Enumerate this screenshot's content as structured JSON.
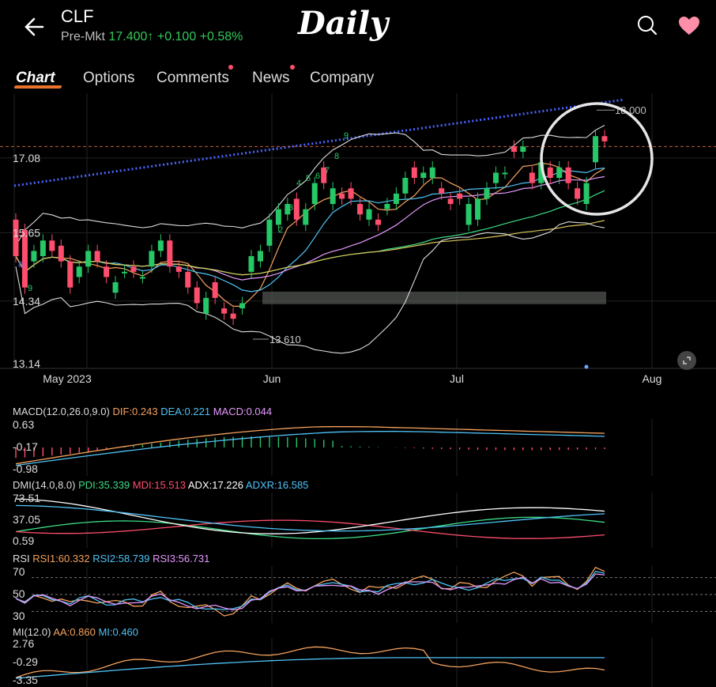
{
  "header": {
    "symbol": "CLF",
    "premkt_label": "Pre-Mkt",
    "premkt_price": "17.400",
    "premkt_arrow": "↑",
    "premkt_change": "+0.100",
    "premkt_change_pct": "+0.58%",
    "overlay_title": "Daily"
  },
  "tabs": [
    {
      "label": "Chart",
      "active": true
    },
    {
      "label": "Options",
      "active": false
    },
    {
      "label": "Comments",
      "active": false,
      "dot": true
    },
    {
      "label": "News",
      "active": false,
      "dot": true
    },
    {
      "label": "Company",
      "active": false
    }
  ],
  "colors": {
    "up": "#26c766",
    "down": "#ff4d6d",
    "dif": "#f5a25d",
    "dea": "#4fc3f7",
    "pdi": "#3ddc84",
    "mdi": "#ff4d6d",
    "adx": "#ffffff",
    "adxr": "#4fc3f7",
    "rsi1": "#f5a25d",
    "rsi2": "#4fc3f7",
    "rsi3": "#e699ff",
    "aa": "#f5a25d",
    "mi": "#4fc3f7"
  },
  "chart_data": {
    "type": "candlestick",
    "y_axis_labels": [
      "17.08",
      "15.65",
      "14.34",
      "13.14"
    ],
    "ylim": [
      13.14,
      18.2
    ],
    "x_axis_labels": [
      "May 2023",
      "Jun",
      "Jul",
      "Aug"
    ],
    "annotations": {
      "high_label": "18.000",
      "low_label": "13.610",
      "td_counts": [
        "8",
        "9",
        "2",
        "3",
        "4",
        "5",
        "6",
        "7",
        "8",
        "9"
      ]
    },
    "candles": [
      {
        "o": 15.9,
        "c": 15.2
      },
      {
        "o": 15.7,
        "c": 14.6
      },
      {
        "o": 15.1,
        "c": 15.3
      },
      {
        "o": 15.2,
        "c": 15.5
      },
      {
        "o": 15.5,
        "c": 15.3
      },
      {
        "o": 15.4,
        "c": 15.1
      },
      {
        "o": 15.1,
        "c": 14.6
      },
      {
        "o": 14.8,
        "c": 15.0
      },
      {
        "o": 15.0,
        "c": 15.3
      },
      {
        "o": 15.3,
        "c": 15.1
      },
      {
        "o": 15.0,
        "c": 14.8
      },
      {
        "o": 14.5,
        "c": 14.7
      },
      {
        "o": 14.9,
        "c": 14.9
      },
      {
        "o": 15.0,
        "c": 14.9
      },
      {
        "o": 14.8,
        "c": 14.8
      },
      {
        "o": 15.0,
        "c": 15.3
      },
      {
        "o": 15.3,
        "c": 15.5
      },
      {
        "o": 15.5,
        "c": 15.0
      },
      {
        "o": 15.0,
        "c": 14.9
      },
      {
        "o": 14.9,
        "c": 14.6
      },
      {
        "o": 14.6,
        "c": 14.3
      },
      {
        "o": 14.1,
        "c": 14.4
      },
      {
        "o": 14.7,
        "c": 14.4
      },
      {
        "o": 14.2,
        "c": 14.1
      },
      {
        "o": 14.1,
        "c": 14.0
      },
      {
        "o": 14.2,
        "c": 14.3
      },
      {
        "o": 14.9,
        "c": 15.2
      },
      {
        "o": 15.1,
        "c": 15.3
      },
      {
        "o": 15.4,
        "c": 15.9
      },
      {
        "o": 15.8,
        "c": 16.1
      },
      {
        "o": 16.0,
        "c": 16.2
      },
      {
        "o": 16.3,
        "c": 15.9
      },
      {
        "o": 15.8,
        "c": 16.1
      },
      {
        "o": 16.2,
        "c": 16.6
      },
      {
        "o": 16.9,
        "c": 16.6
      },
      {
        "o": 16.2,
        "c": 16.5
      },
      {
        "o": 16.4,
        "c": 16.3
      },
      {
        "o": 16.5,
        "c": 16.3
      },
      {
        "o": 16.2,
        "c": 16.0
      },
      {
        "o": 15.9,
        "c": 16.1
      },
      {
        "o": 15.9,
        "c": 15.8
      },
      {
        "o": 16.1,
        "c": 16.2
      },
      {
        "o": 16.2,
        "c": 16.4
      },
      {
        "o": 16.4,
        "c": 16.7
      },
      {
        "o": 16.9,
        "c": 16.7
      },
      {
        "o": 16.7,
        "c": 16.8
      },
      {
        "o": 16.7,
        "c": 16.9
      },
      {
        "o": 16.5,
        "c": 16.4
      },
      {
        "o": 16.3,
        "c": 16.2
      },
      {
        "o": 16.4,
        "c": 16.3
      },
      {
        "o": 15.8,
        "c": 16.2
      },
      {
        "o": 15.9,
        "c": 16.3
      },
      {
        "o": 16.3,
        "c": 16.5
      },
      {
        "o": 16.6,
        "c": 16.8
      },
      {
        "o": 16.8,
        "c": 16.8
      },
      {
        "o": 17.3,
        "c": 17.2
      },
      {
        "o": 17.2,
        "c": 17.3
      },
      {
        "o": 16.8,
        "c": 16.6
      },
      {
        "o": 16.6,
        "c": 17.0
      },
      {
        "o": 16.9,
        "c": 16.7
      },
      {
        "o": 16.7,
        "c": 16.9
      },
      {
        "o": 16.9,
        "c": 16.6
      },
      {
        "o": 16.5,
        "c": 16.3
      },
      {
        "o": 16.2,
        "c": 16.6
      },
      {
        "o": 17.0,
        "c": 17.5
      },
      {
        "o": 17.5,
        "c": 17.4
      }
    ],
    "macd": {
      "label": "MACD(12.0,26.0,9.0)",
      "dif_label": "DIF:0.243",
      "dea_label": "DEA:0.221",
      "macd_label": "MACD:0.044",
      "y_labels": [
        "0.63",
        "-0.17",
        "-0.98"
      ]
    },
    "dmi": {
      "label": "DMI(14.0,8.0)",
      "pdi_label": "PDI:35.339",
      "mdi_label": "MDI:15.513",
      "adx_label": "ADX:17.226",
      "adxr_label": "ADXR:16.585",
      "y_labels": [
        "73.51",
        "37.05",
        "0.59"
      ]
    },
    "rsi": {
      "label": "RSI",
      "rsi1_label": "RSI1:60.332",
      "rsi2_label": "RSI2:58.739",
      "rsi3_label": "RSI3:56.731",
      "y_labels": [
        "70",
        "50",
        "30"
      ]
    },
    "mi": {
      "label": "MI(12.0)",
      "aa_label": "AA:0.860",
      "mi_label": "MI:0.460",
      "y_labels": [
        "2.76",
        "-0.29",
        "-3.35"
      ]
    }
  }
}
